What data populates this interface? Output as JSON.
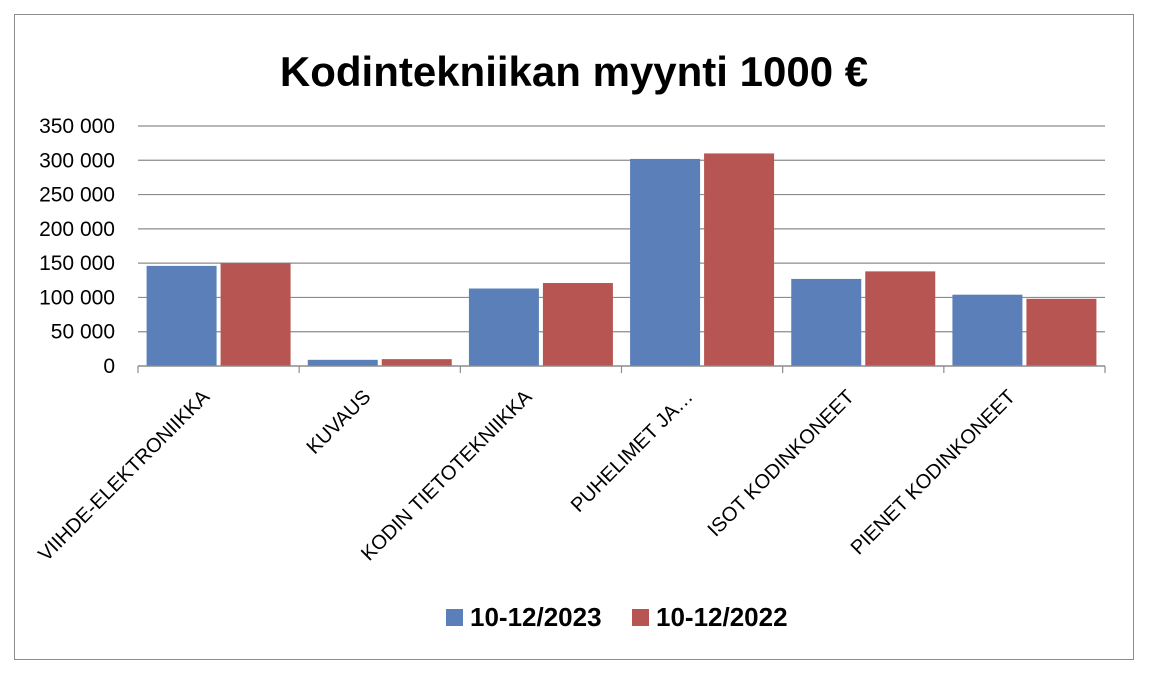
{
  "chart_data": {
    "type": "bar",
    "title": "Kodintekniikan myynti 1000 €",
    "categories": [
      "VIIHDE-ELEKTRONIIKKA",
      "KUVAUS",
      "KODIN TIETOTEKNIIKKA",
      "PUHELIMET JA…",
      "ISOT KODINKONEET",
      "PIENET KODINKONEET"
    ],
    "series": [
      {
        "name": "10-12/2023",
        "color": "#5b80b9",
        "values": [
          146000,
          9000,
          113000,
          302000,
          127000,
          104000
        ]
      },
      {
        "name": "10-12/2022",
        "color": "#b65552",
        "values": [
          150000,
          10000,
          121000,
          310000,
          138000,
          98000
        ]
      }
    ],
    "ylim": [
      0,
      350000
    ],
    "yticks": [
      "0",
      "50 000",
      "100 000",
      "150 000",
      "200 000",
      "250 000",
      "300 000",
      "350 000"
    ],
    "xlabel": "",
    "ylabel": "",
    "grid": true,
    "legend_position": "bottom"
  }
}
